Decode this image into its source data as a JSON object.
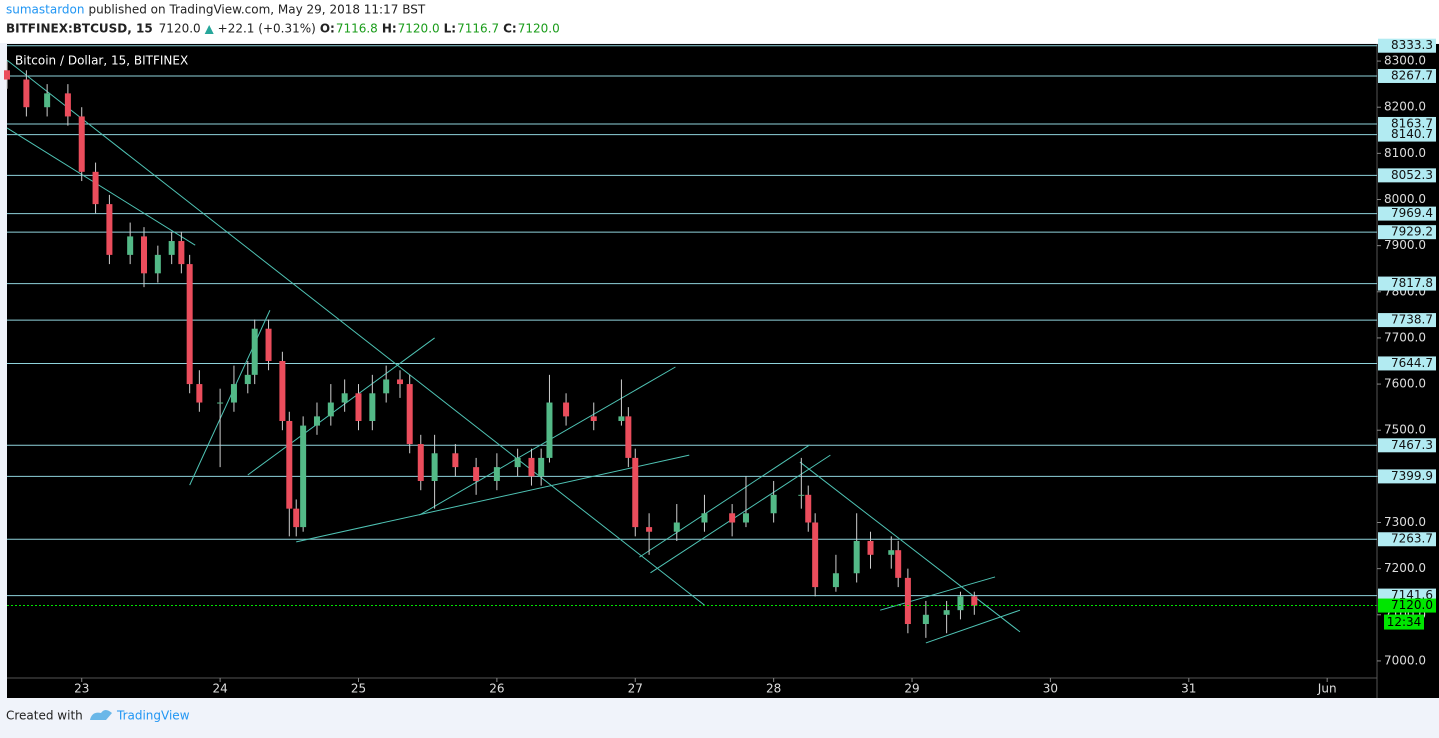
{
  "header": {
    "author": "sumastardon",
    "published": "published on TradingView.com, May 29, 2018 11:17 BST",
    "symbol": "BITFINEX:BTCUSD, 15",
    "last": "7120.0",
    "change": "+22.1 (+0.31%)",
    "ohlc": [
      {
        "label": "O:",
        "value": "7116.8"
      },
      {
        "label": "H:",
        "value": "7120.0"
      },
      {
        "label": "L:",
        "value": "7116.7"
      },
      {
        "label": "C:",
        "value": "7120.0"
      }
    ]
  },
  "chart_data": {
    "type": "candlestick",
    "legend": "Bitcoin / Dollar, 15, BITFINEX",
    "up_color": "#53b987",
    "down_color": "#eb4d5c",
    "line_color": "#4fc3b4",
    "level_color": "#8fd3dc",
    "current_color": "#00e600",
    "xlim": [
      22.46,
      32.36
    ],
    "ylim": [
      6963,
      8337
    ],
    "xticks": [
      23,
      24,
      25,
      26,
      27,
      28,
      29,
      30,
      31,
      {
        "value": 32,
        "label": "Jun"
      }
    ],
    "yticks": [
      {
        "value": 7000,
        "label": "7000.0"
      },
      {
        "value": 7100,
        "label": "7100.0"
      },
      {
        "value": 7200,
        "label": "7200.0"
      },
      {
        "value": 7300,
        "label": "7300.0"
      },
      {
        "value": 7400,
        "label": "7400.0"
      },
      {
        "value": 7500,
        "label": "7500.0"
      },
      {
        "value": 7600,
        "label": "7600.0"
      },
      {
        "value": 7700,
        "label": "7700.0"
      },
      {
        "value": 7800,
        "label": "7800.0"
      },
      {
        "value": 7900,
        "label": "7900.0"
      },
      {
        "value": 8000,
        "label": "8000.0"
      },
      {
        "value": 8100,
        "label": "8100.0"
      },
      {
        "value": 8200,
        "label": "8200.0"
      },
      {
        "value": 8300,
        "label": "8300.0"
      }
    ],
    "x": [
      22.46,
      22.6,
      22.75,
      22.9,
      23.0,
      23.1,
      23.2,
      23.35,
      23.45,
      23.55,
      23.65,
      23.72,
      23.78,
      23.85,
      24.0,
      24.1,
      24.2,
      24.25,
      24.35,
      24.45,
      24.5,
      24.55,
      24.6,
      24.7,
      24.8,
      24.9,
      25.0,
      25.1,
      25.2,
      25.3,
      25.37,
      25.45,
      25.55,
      25.7,
      25.85,
      26.0,
      26.15,
      26.25,
      26.32,
      26.38,
      26.5,
      26.7,
      26.9,
      26.95,
      27.0,
      27.1,
      27.3,
      27.5,
      27.7,
      27.8,
      28.0,
      28.2,
      28.25,
      28.3,
      28.45,
      28.6,
      28.7,
      28.85,
      28.9,
      28.97,
      29.1,
      29.25,
      29.35,
      29.45
    ],
    "open": [
      8280,
      8260,
      8200,
      8230,
      8180,
      8060,
      7990,
      7880,
      7920,
      7840,
      7880,
      7910,
      7860,
      7600,
      7560,
      7560,
      7600,
      7620,
      7720,
      7650,
      7520,
      7330,
      7290,
      7510,
      7530,
      7560,
      7580,
      7520,
      7580,
      7610,
      7600,
      7470,
      7390,
      7450,
      7420,
      7390,
      7420,
      7440,
      7400,
      7440,
      7560,
      7530,
      7520,
      7530,
      7440,
      7290,
      7280,
      7300,
      7320,
      7300,
      7320,
      7360,
      7360,
      7300,
      7160,
      7190,
      7260,
      7230,
      7240,
      7180,
      7080,
      7100,
      7110,
      7140
    ],
    "high": [
      8300,
      8280,
      8250,
      8250,
      8200,
      8080,
      8010,
      7950,
      7940,
      7900,
      7930,
      7930,
      7880,
      7630,
      7590,
      7640,
      7650,
      7740,
      7740,
      7670,
      7540,
      7350,
      7530,
      7560,
      7600,
      7610,
      7600,
      7620,
      7640,
      7630,
      7620,
      7490,
      7490,
      7470,
      7440,
      7450,
      7460,
      7460,
      7460,
      7620,
      7580,
      7560,
      7610,
      7550,
      7460,
      7320,
      7340,
      7360,
      7340,
      7400,
      7390,
      7440,
      7380,
      7320,
      7230,
      7320,
      7280,
      7270,
      7260,
      7200,
      7130,
      7130,
      7150,
      7150
    ],
    "low": [
      8240,
      8180,
      8180,
      8160,
      8040,
      7970,
      7860,
      7860,
      7810,
      7820,
      7860,
      7840,
      7580,
      7540,
      7420,
      7540,
      7580,
      7600,
      7630,
      7500,
      7270,
      7270,
      7280,
      7490,
      7510,
      7540,
      7500,
      7500,
      7560,
      7570,
      7450,
      7370,
      7330,
      7400,
      7360,
      7370,
      7400,
      7380,
      7380,
      7430,
      7510,
      7500,
      7510,
      7420,
      7270,
      7230,
      7260,
      7280,
      7270,
      7290,
      7300,
      7330,
      7280,
      7140,
      7150,
      7170,
      7200,
      7200,
      7160,
      7060,
      7050,
      7060,
      7090,
      7100
    ],
    "close": [
      8260,
      8200,
      8230,
      8180,
      8060,
      7990,
      7880,
      7920,
      7840,
      7880,
      7910,
      7860,
      7600,
      7560,
      7560,
      7600,
      7620,
      7720,
      7650,
      7520,
      7330,
      7290,
      7510,
      7530,
      7560,
      7580,
      7520,
      7580,
      7610,
      7600,
      7470,
      7390,
      7450,
      7420,
      7390,
      7420,
      7440,
      7400,
      7440,
      7560,
      7530,
      7520,
      7530,
      7440,
      7290,
      7280,
      7300,
      7320,
      7300,
      7320,
      7360,
      7360,
      7300,
      7160,
      7190,
      7260,
      7230,
      7240,
      7180,
      7080,
      7100,
      7110,
      7140,
      7120
    ],
    "levels": [
      8333.3,
      8267.7,
      8163.7,
      8140.7,
      8052.3,
      7969.4,
      7929.2,
      7817.8,
      7738.7,
      7644.7,
      7467.3,
      7399.9,
      7263.7,
      7141.6
    ],
    "current": {
      "value": 7120,
      "label": "7120.0"
    },
    "countdown": "12:34",
    "trendlines": [
      {
        "x": [
          22.46,
          27.5
        ],
        "y": [
          8302,
          7121
        ]
      },
      {
        "x": [
          22.46,
          23.82
        ],
        "y": [
          8155,
          7901
        ]
      },
      {
        "x": [
          24.55,
          27.39
        ],
        "y": [
          7258,
          7446
        ]
      },
      {
        "x": [
          25.44,
          27.29
        ],
        "y": [
          7316,
          7637
        ]
      },
      {
        "x": [
          28.19,
          29.78
        ],
        "y": [
          7431,
          7063
        ]
      },
      {
        "x": [
          27.03,
          28.26
        ],
        "y": [
          7225,
          7468
        ]
      },
      {
        "x": [
          27.11,
          28.41
        ],
        "y": [
          7191,
          7446
        ]
      },
      {
        "x": [
          29.1,
          29.78
        ],
        "y": [
          7039,
          7110
        ]
      },
      {
        "x": [
          28.77,
          29.6
        ],
        "y": [
          7110,
          7182
        ]
      },
      {
        "x": [
          24.2,
          25.55
        ],
        "y": [
          7403,
          7700
        ]
      },
      {
        "x": [
          23.78,
          24.36
        ],
        "y": [
          7381,
          7760
        ]
      }
    ]
  },
  "footer": {
    "created": "Created with",
    "brand": "TradingView"
  }
}
